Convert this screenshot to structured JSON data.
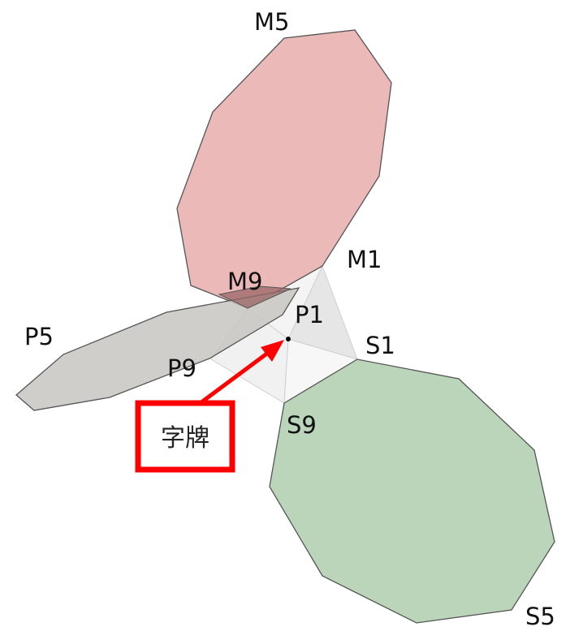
{
  "labels": {
    "m5": "M5",
    "m1": "M1",
    "m9": "M9",
    "p1": "P1",
    "p5": "P5",
    "p9": "P9",
    "s1": "S1",
    "s9": "S9",
    "s5": "S5"
  },
  "callout": {
    "text": "字牌"
  },
  "colors": {
    "m_region": "#e8adab",
    "p_region": "#c8c5c1",
    "s_region": "#b2d0b2",
    "overlap_dark": "#9a6565",
    "center_shade": "#ececec",
    "callout_border": "#ff0000",
    "arrow": "#ff0000"
  }
}
